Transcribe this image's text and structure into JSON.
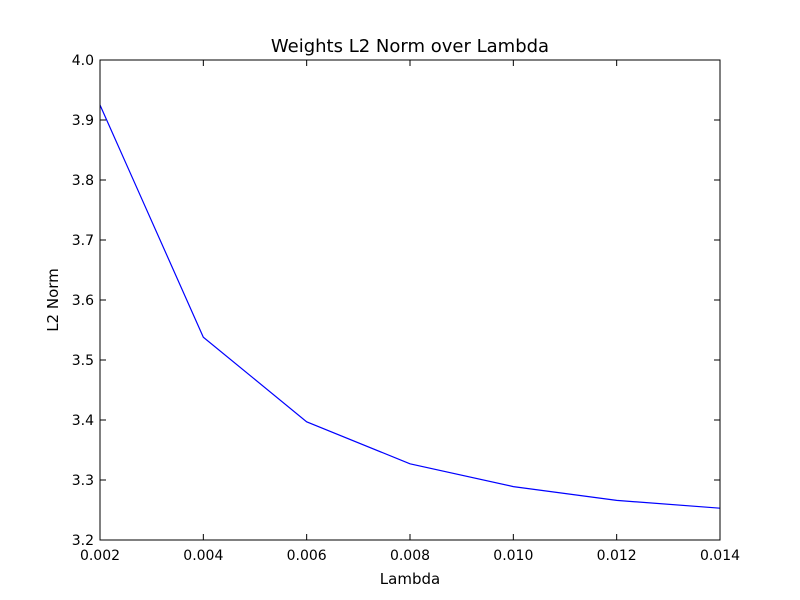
{
  "chart_data": {
    "type": "line",
    "title": "Weights L2 Norm over Lambda",
    "xlabel": "Lambda",
    "ylabel": "L2 Norm",
    "xlim": [
      0.002,
      0.014
    ],
    "ylim": [
      3.2,
      4.0
    ],
    "x_ticks": [
      "0.002",
      "0.004",
      "0.006",
      "0.008",
      "0.010",
      "0.012",
      "0.014"
    ],
    "y_ticks": [
      "3.2",
      "3.3",
      "3.4",
      "3.5",
      "3.6",
      "3.7",
      "3.8",
      "3.9",
      "4.0"
    ],
    "grid": false,
    "legend": "none",
    "series": [
      {
        "color": "#0000ff",
        "x": [
          0.002,
          0.004,
          0.006,
          0.008,
          0.01,
          0.012,
          0.014
        ],
        "y": [
          3.925,
          3.538,
          3.397,
          3.327,
          3.289,
          3.266,
          3.253
        ]
      }
    ]
  }
}
